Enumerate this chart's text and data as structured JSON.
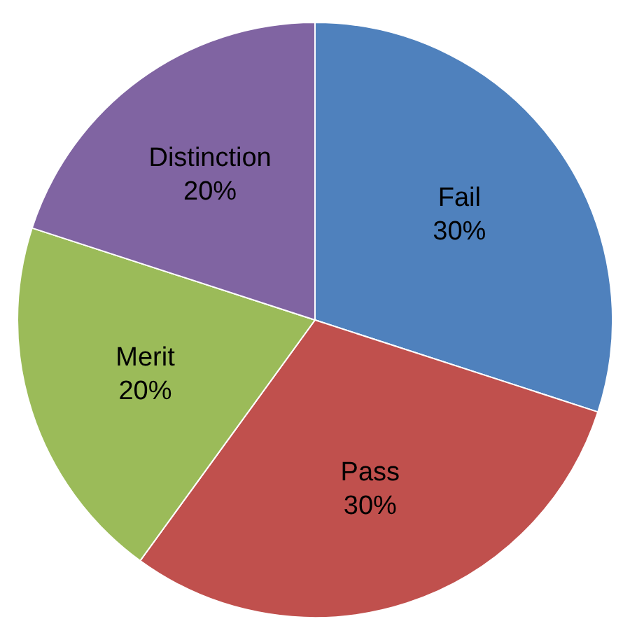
{
  "chart_data": {
    "type": "pie",
    "categories": [
      "Fail",
      "Pass",
      "Merit",
      "Distinction"
    ],
    "values": [
      30,
      30,
      20,
      20
    ],
    "colors": [
      "#4f81bd",
      "#c0504d",
      "#9bbb59",
      "#8064a2"
    ],
    "value_labels": [
      "30%",
      "30%",
      "20%",
      "20%"
    ],
    "legend": false
  }
}
